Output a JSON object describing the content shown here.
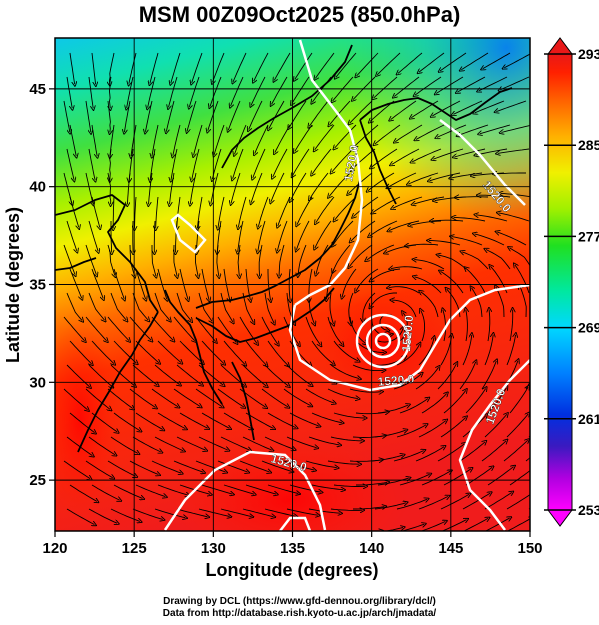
{
  "title": "MSM 00Z09Oct2025 (850.0hPa)",
  "x_axis": {
    "label": "Longitude (degrees)",
    "ticks": [
      "120",
      "125",
      "130",
      "135",
      "140",
      "145",
      "150"
    ]
  },
  "y_axis": {
    "label": "Latitude  (degrees)",
    "ticks": [
      "25",
      "30",
      "35",
      "40",
      "45"
    ]
  },
  "colorbar": {
    "ticks": [
      "293",
      "285",
      "277",
      "269",
      "261",
      "253"
    ],
    "colors": [
      "#ff00ff",
      "#b000e0",
      "#3a1ac0",
      "#0030e0",
      "#0080ff",
      "#00d8ff",
      "#00e8a0",
      "#20e020",
      "#a0f000",
      "#f0f000",
      "#ffb000",
      "#ff6000",
      "#ff2000",
      "#e81818"
    ]
  },
  "contour_labels": [
    "1520.0",
    "1520.0",
    "1520.0",
    "1520.0",
    "1520.0",
    "1520.0"
  ],
  "credits": {
    "line1": "Drawing by DCL (https://www.gfd-dennou.org/library/dcl/)",
    "line2": "Data from http://database.rish.kyoto-u.ac.jp/arch/jmadata/"
  },
  "chart_data": {
    "type": "heatmap",
    "title": "MSM 00Z09Oct2025 (850.0hPa)",
    "xlabel": "Longitude (degrees)",
    "ylabel": "Latitude  (degrees)",
    "xlim": [
      120,
      150
    ],
    "ylim": [
      22.4,
      47.6
    ],
    "x_ticks": [
      120,
      125,
      130,
      135,
      140,
      145,
      150
    ],
    "y_ticks": [
      25,
      30,
      35,
      40,
      45
    ],
    "colorbar_range": [
      253,
      293
    ],
    "colorbar_ticks": [
      253,
      261,
      269,
      277,
      285,
      293
    ],
    "field": "temperature (shaded), wind streamlines, geopotential height contours",
    "contour_value": 1520.0,
    "low_center": {
      "lon": 141,
      "lat": 33
    },
    "grid": true
  }
}
